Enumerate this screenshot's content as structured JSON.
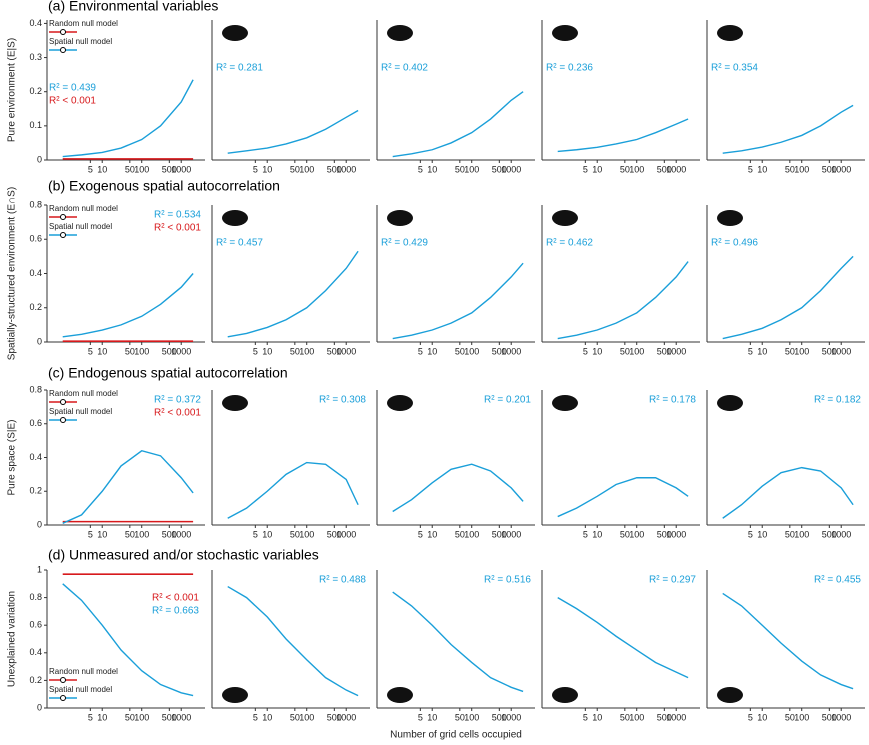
{
  "chart_data": [
    {
      "type": "line",
      "title": "(a) Environmental variables",
      "ylabel": "Pure environment (E|S)",
      "log_x": true,
      "xlim": [
        0.4,
        4000
      ],
      "ylim": [
        0,
        0.41
      ],
      "yticks": [
        0,
        0.1,
        0.2,
        0.3,
        0.4
      ],
      "xticks": [
        5,
        10,
        50,
        100,
        500,
        1000
      ],
      "x": [
        1,
        3,
        10,
        30,
        100,
        300,
        1000,
        2000
      ],
      "series": [
        {
          "name": "Random null model",
          "color": "#d7191c",
          "values": [
            0.003,
            0.003,
            0.003,
            0.003,
            0.003,
            0.003,
            0.003,
            0.003
          ]
        },
        {
          "name": "Spatial null model",
          "color": "#1a9fd9",
          "values": [
            0.01,
            0.015,
            0.022,
            0.035,
            0.06,
            0.1,
            0.17,
            0.235
          ]
        }
      ],
      "annotations": [
        {
          "text": "R² = 0.439",
          "color": "#1a9fd9"
        },
        {
          "text": "R² < 0.001",
          "color": "#d7191c"
        }
      ]
    },
    {
      "type": "line",
      "log_x": true,
      "xlim": [
        0.4,
        4000
      ],
      "ylim": [
        0,
        0.41
      ],
      "xticks": [
        5,
        10,
        50,
        100,
        500,
        1000
      ],
      "x": [
        1,
        3,
        10,
        30,
        100,
        300,
        1000,
        2000
      ],
      "series": [
        {
          "color": "#1a9fd9",
          "values": [
            0.02,
            0.027,
            0.035,
            0.047,
            0.065,
            0.09,
            0.125,
            0.145
          ]
        }
      ],
      "annotations": [
        {
          "text": "R² = 0.281",
          "color": "#1a9fd9"
        }
      ]
    },
    {
      "type": "line",
      "log_x": true,
      "xlim": [
        0.4,
        4000
      ],
      "ylim": [
        0,
        0.41
      ],
      "xticks": [
        5,
        10,
        50,
        100,
        500,
        1000
      ],
      "x": [
        1,
        3,
        10,
        30,
        100,
        300,
        1000,
        2000
      ],
      "series": [
        {
          "color": "#1a9fd9",
          "values": [
            0.01,
            0.018,
            0.03,
            0.05,
            0.08,
            0.12,
            0.175,
            0.2
          ]
        }
      ],
      "annotations": [
        {
          "text": "R² = 0.402",
          "color": "#1a9fd9"
        }
      ]
    },
    {
      "type": "line",
      "log_x": true,
      "xlim": [
        0.4,
        4000
      ],
      "ylim": [
        0,
        0.41
      ],
      "xticks": [
        5,
        10,
        50,
        100,
        500,
        1000
      ],
      "x": [
        1,
        3,
        10,
        30,
        100,
        300,
        1000,
        2000
      ],
      "series": [
        {
          "color": "#1a9fd9",
          "values": [
            0.025,
            0.03,
            0.037,
            0.047,
            0.06,
            0.08,
            0.105,
            0.12
          ]
        }
      ],
      "annotations": [
        {
          "text": "R² = 0.236",
          "color": "#1a9fd9"
        }
      ]
    },
    {
      "type": "line",
      "log_x": true,
      "xlim": [
        0.4,
        4000
      ],
      "ylim": [
        0,
        0.41
      ],
      "xticks": [
        5,
        10,
        50,
        100,
        500,
        1000
      ],
      "x": [
        1,
        3,
        10,
        30,
        100,
        300,
        1000,
        2000
      ],
      "series": [
        {
          "color": "#1a9fd9",
          "values": [
            0.02,
            0.027,
            0.038,
            0.052,
            0.072,
            0.1,
            0.14,
            0.16
          ]
        }
      ],
      "annotations": [
        {
          "text": "R² = 0.354",
          "color": "#1a9fd9"
        }
      ]
    },
    {
      "type": "line",
      "title": "(b) Exogenous spatial autocorrelation",
      "ylabel": "Spatially-structured environment (E∩S)",
      "log_x": true,
      "xlim": [
        0.4,
        4000
      ],
      "ylim": [
        0,
        0.8
      ],
      "yticks": [
        0,
        0.2,
        0.4,
        0.6,
        0.8
      ],
      "xticks": [
        5,
        10,
        50,
        100,
        500,
        1000
      ],
      "x": [
        1,
        3,
        10,
        30,
        100,
        300,
        1000,
        2000
      ],
      "series": [
        {
          "name": "Random null model",
          "color": "#d7191c",
          "values": [
            0.005,
            0.005,
            0.005,
            0.005,
            0.005,
            0.005,
            0.005,
            0.005
          ]
        },
        {
          "name": "Spatial null model",
          "color": "#1a9fd9",
          "values": [
            0.03,
            0.045,
            0.07,
            0.1,
            0.15,
            0.22,
            0.32,
            0.4
          ]
        }
      ],
      "annotations": [
        {
          "text": "R² = 0.534",
          "color": "#1a9fd9"
        },
        {
          "text": "R² < 0.001",
          "color": "#d7191c"
        }
      ]
    },
    {
      "type": "line",
      "log_x": true,
      "xlim": [
        0.4,
        4000
      ],
      "ylim": [
        0,
        0.8
      ],
      "xticks": [
        5,
        10,
        50,
        100,
        500,
        1000
      ],
      "x": [
        1,
        3,
        10,
        30,
        100,
        300,
        1000,
        2000
      ],
      "series": [
        {
          "color": "#1a9fd9",
          "values": [
            0.03,
            0.05,
            0.085,
            0.13,
            0.2,
            0.3,
            0.43,
            0.53
          ]
        }
      ],
      "annotations": [
        {
          "text": "R² = 0.457",
          "color": "#1a9fd9"
        }
      ]
    },
    {
      "type": "line",
      "log_x": true,
      "xlim": [
        0.4,
        4000
      ],
      "ylim": [
        0,
        0.8
      ],
      "xticks": [
        5,
        10,
        50,
        100,
        500,
        1000
      ],
      "x": [
        1,
        3,
        10,
        30,
        100,
        300,
        1000,
        2000
      ],
      "series": [
        {
          "color": "#1a9fd9",
          "values": [
            0.02,
            0.04,
            0.07,
            0.11,
            0.17,
            0.26,
            0.38,
            0.46
          ]
        }
      ],
      "annotations": [
        {
          "text": "R² = 0.429",
          "color": "#1a9fd9"
        }
      ]
    },
    {
      "type": "line",
      "log_x": true,
      "xlim": [
        0.4,
        4000
      ],
      "ylim": [
        0,
        0.8
      ],
      "xticks": [
        5,
        10,
        50,
        100,
        500,
        1000
      ],
      "x": [
        1,
        3,
        10,
        30,
        100,
        300,
        1000,
        2000
      ],
      "series": [
        {
          "color": "#1a9fd9",
          "values": [
            0.02,
            0.04,
            0.07,
            0.11,
            0.17,
            0.26,
            0.38,
            0.47
          ]
        }
      ],
      "annotations": [
        {
          "text": "R² = 0.462",
          "color": "#1a9fd9"
        }
      ]
    },
    {
      "type": "line",
      "log_x": true,
      "xlim": [
        0.4,
        4000
      ],
      "ylim": [
        0,
        0.8
      ],
      "xticks": [
        5,
        10,
        50,
        100,
        500,
        1000
      ],
      "x": [
        1,
        3,
        10,
        30,
        100,
        300,
        1000,
        2000
      ],
      "series": [
        {
          "color": "#1a9fd9",
          "values": [
            0.02,
            0.045,
            0.08,
            0.13,
            0.2,
            0.3,
            0.43,
            0.5
          ]
        }
      ],
      "annotations": [
        {
          "text": "R² = 0.496",
          "color": "#1a9fd9"
        }
      ]
    },
    {
      "type": "line",
      "title": "(c) Endogenous spatial autocorrelation",
      "ylabel": "Pure space (S|E)",
      "log_x": true,
      "xlim": [
        0.4,
        4000
      ],
      "ylim": [
        0,
        0.8
      ],
      "yticks": [
        0,
        0.2,
        0.4,
        0.6,
        0.8
      ],
      "xticks": [
        5,
        10,
        50,
        100,
        500,
        1000
      ],
      "x": [
        1,
        3,
        10,
        30,
        100,
        300,
        1000,
        2000
      ],
      "series": [
        {
          "name": "Random null model",
          "color": "#d7191c",
          "values": [
            0.02,
            0.02,
            0.02,
            0.02,
            0.02,
            0.02,
            0.02,
            0.02
          ]
        },
        {
          "name": "Spatial null model",
          "color": "#1a9fd9",
          "values": [
            0.01,
            0.06,
            0.2,
            0.35,
            0.44,
            0.41,
            0.28,
            0.19
          ]
        }
      ],
      "annotations": [
        {
          "text": "R² = 0.372",
          "color": "#1a9fd9"
        },
        {
          "text": "R² < 0.001",
          "color": "#d7191c"
        }
      ]
    },
    {
      "type": "line",
      "log_x": true,
      "xlim": [
        0.4,
        4000
      ],
      "ylim": [
        0,
        0.8
      ],
      "xticks": [
        5,
        10,
        50,
        100,
        500,
        1000
      ],
      "x": [
        1,
        3,
        10,
        30,
        100,
        300,
        1000,
        2000
      ],
      "series": [
        {
          "color": "#1a9fd9",
          "values": [
            0.04,
            0.1,
            0.2,
            0.3,
            0.37,
            0.36,
            0.27,
            0.12
          ]
        }
      ],
      "annotations": [
        {
          "text": "R² = 0.308",
          "color": "#1a9fd9"
        }
      ]
    },
    {
      "type": "line",
      "log_x": true,
      "xlim": [
        0.4,
        4000
      ],
      "ylim": [
        0,
        0.8
      ],
      "xticks": [
        5,
        10,
        50,
        100,
        500,
        1000
      ],
      "x": [
        1,
        3,
        10,
        30,
        100,
        300,
        1000,
        2000
      ],
      "series": [
        {
          "color": "#1a9fd9",
          "values": [
            0.08,
            0.15,
            0.25,
            0.33,
            0.36,
            0.32,
            0.22,
            0.14
          ]
        }
      ],
      "annotations": [
        {
          "text": "R² = 0.201",
          "color": "#1a9fd9"
        }
      ]
    },
    {
      "type": "line",
      "log_x": true,
      "xlim": [
        0.4,
        4000
      ],
      "ylim": [
        0,
        0.8
      ],
      "xticks": [
        5,
        10,
        50,
        100,
        500,
        1000
      ],
      "x": [
        1,
        3,
        10,
        30,
        100,
        300,
        1000,
        2000
      ],
      "series": [
        {
          "color": "#1a9fd9",
          "values": [
            0.05,
            0.1,
            0.17,
            0.24,
            0.28,
            0.28,
            0.22,
            0.17
          ]
        }
      ],
      "annotations": [
        {
          "text": "R² = 0.178",
          "color": "#1a9fd9"
        }
      ]
    },
    {
      "type": "line",
      "log_x": true,
      "xlim": [
        0.4,
        4000
      ],
      "ylim": [
        0,
        0.8
      ],
      "xticks": [
        5,
        10,
        50,
        100,
        500,
        1000
      ],
      "x": [
        1,
        3,
        10,
        30,
        100,
        300,
        1000,
        2000
      ],
      "series": [
        {
          "color": "#1a9fd9",
          "values": [
            0.04,
            0.12,
            0.23,
            0.31,
            0.34,
            0.32,
            0.22,
            0.12
          ]
        }
      ],
      "annotations": [
        {
          "text": "R² = 0.182",
          "color": "#1a9fd9"
        }
      ]
    },
    {
      "type": "line",
      "title": "(d) Unmeasured and/or stochastic variables",
      "ylabel": "Unexplained variation",
      "log_x": true,
      "xlim": [
        0.4,
        4000
      ],
      "ylim": [
        0,
        1
      ],
      "yticks": [
        0,
        0.2,
        0.4,
        0.6,
        0.8,
        1
      ],
      "xticks": [
        5,
        10,
        50,
        100,
        500,
        1000
      ],
      "x": [
        1,
        3,
        10,
        30,
        100,
        300,
        1000,
        2000
      ],
      "series": [
        {
          "name": "Random null model",
          "color": "#d7191c",
          "values": [
            0.97,
            0.97,
            0.97,
            0.97,
            0.97,
            0.97,
            0.97,
            0.97
          ]
        },
        {
          "name": "Spatial null model",
          "color": "#1a9fd9",
          "values": [
            0.9,
            0.78,
            0.6,
            0.42,
            0.27,
            0.17,
            0.11,
            0.09
          ]
        }
      ],
      "annotations": [
        {
          "text": "R² < 0.001",
          "color": "#d7191c"
        },
        {
          "text": "R² = 0.663",
          "color": "#1a9fd9"
        }
      ]
    },
    {
      "type": "line",
      "log_x": true,
      "xlim": [
        0.4,
        4000
      ],
      "ylim": [
        0,
        1
      ],
      "xticks": [
        5,
        10,
        50,
        100,
        500,
        1000
      ],
      "x": [
        1,
        3,
        10,
        30,
        100,
        300,
        1000,
        2000
      ],
      "series": [
        {
          "color": "#1a9fd9",
          "values": [
            0.88,
            0.8,
            0.66,
            0.5,
            0.35,
            0.22,
            0.13,
            0.09
          ]
        }
      ],
      "annotations": [
        {
          "text": "R² = 0.488",
          "color": "#1a9fd9"
        }
      ]
    },
    {
      "type": "line",
      "log_x": true,
      "xlabel": "Number of grid cells occupied",
      "xlim": [
        0.4,
        4000
      ],
      "ylim": [
        0,
        1
      ],
      "xticks": [
        5,
        10,
        50,
        100,
        500,
        1000
      ],
      "x": [
        1,
        3,
        10,
        30,
        100,
        300,
        1000,
        2000
      ],
      "series": [
        {
          "color": "#1a9fd9",
          "values": [
            0.84,
            0.74,
            0.6,
            0.46,
            0.33,
            0.22,
            0.15,
            0.12
          ]
        }
      ],
      "annotations": [
        {
          "text": "R² = 0.516",
          "color": "#1a9fd9"
        }
      ]
    },
    {
      "type": "line",
      "log_x": true,
      "xlim": [
        0.4,
        4000
      ],
      "ylim": [
        0,
        1
      ],
      "xticks": [
        5,
        10,
        50,
        100,
        500,
        1000
      ],
      "x": [
        1,
        3,
        10,
        30,
        100,
        300,
        1000,
        2000
      ],
      "series": [
        {
          "color": "#1a9fd9",
          "values": [
            0.8,
            0.72,
            0.62,
            0.52,
            0.42,
            0.33,
            0.26,
            0.22
          ]
        }
      ],
      "annotations": [
        {
          "text": "R² = 0.297",
          "color": "#1a9fd9"
        }
      ]
    },
    {
      "type": "line",
      "log_x": true,
      "xlim": [
        0.4,
        4000
      ],
      "ylim": [
        0,
        1
      ],
      "xticks": [
        5,
        10,
        50,
        100,
        500,
        1000
      ],
      "x": [
        1,
        3,
        10,
        30,
        100,
        300,
        1000,
        2000
      ],
      "series": [
        {
          "color": "#1a9fd9",
          "values": [
            0.83,
            0.74,
            0.6,
            0.47,
            0.34,
            0.24,
            0.17,
            0.14
          ]
        }
      ],
      "annotations": [
        {
          "text": "R² = 0.455",
          "color": "#1a9fd9"
        }
      ]
    }
  ]
}
